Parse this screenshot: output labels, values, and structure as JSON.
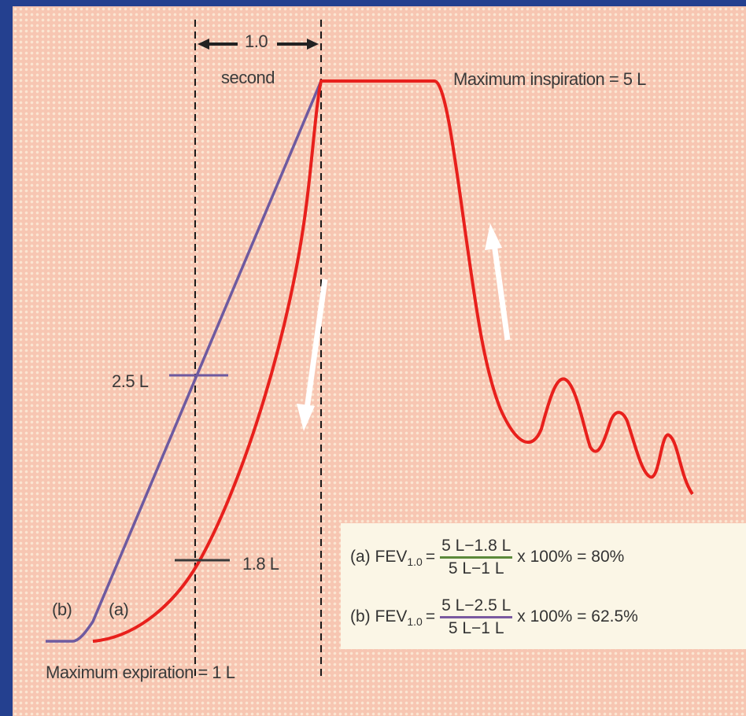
{
  "labels": {
    "interval_value": "1.0",
    "interval_unit": "second",
    "max_inspiration": "Maximum inspiration = 5 L",
    "max_expiration": "Maximum expiration = 1 L",
    "level_b": "2.5 L",
    "level_a": "1.8 L",
    "curve_b": "(b)",
    "curve_a": "(a)"
  },
  "formulas": [
    {
      "tag": "(a)",
      "name": "FEV",
      "subscript": "1.0",
      "eq": "=",
      "numerator": "5 L−1.8 L",
      "denominator": "5 L−1 L",
      "times": "x 100% =",
      "result": "80%"
    },
    {
      "tag": "(b)",
      "name": "FEV",
      "subscript": "1.0",
      "eq": "=",
      "numerator": "5 L−2.5 L",
      "denominator": "5 L−1 L",
      "times": "x 100% =",
      "result": "62.5%"
    }
  ],
  "colors": {
    "curve_a": "#e8201c",
    "curve_b": "#6e5aa0",
    "paper": "#f7c6b2",
    "frame": "#24408f",
    "formula_bar_a": "#5c8a3a",
    "formula_bar_b": "#7a5aa0"
  },
  "icons": [
    "arrow-left-icon",
    "arrow-right-icon",
    "arrow-down-icon",
    "arrow-up-icon"
  ]
}
